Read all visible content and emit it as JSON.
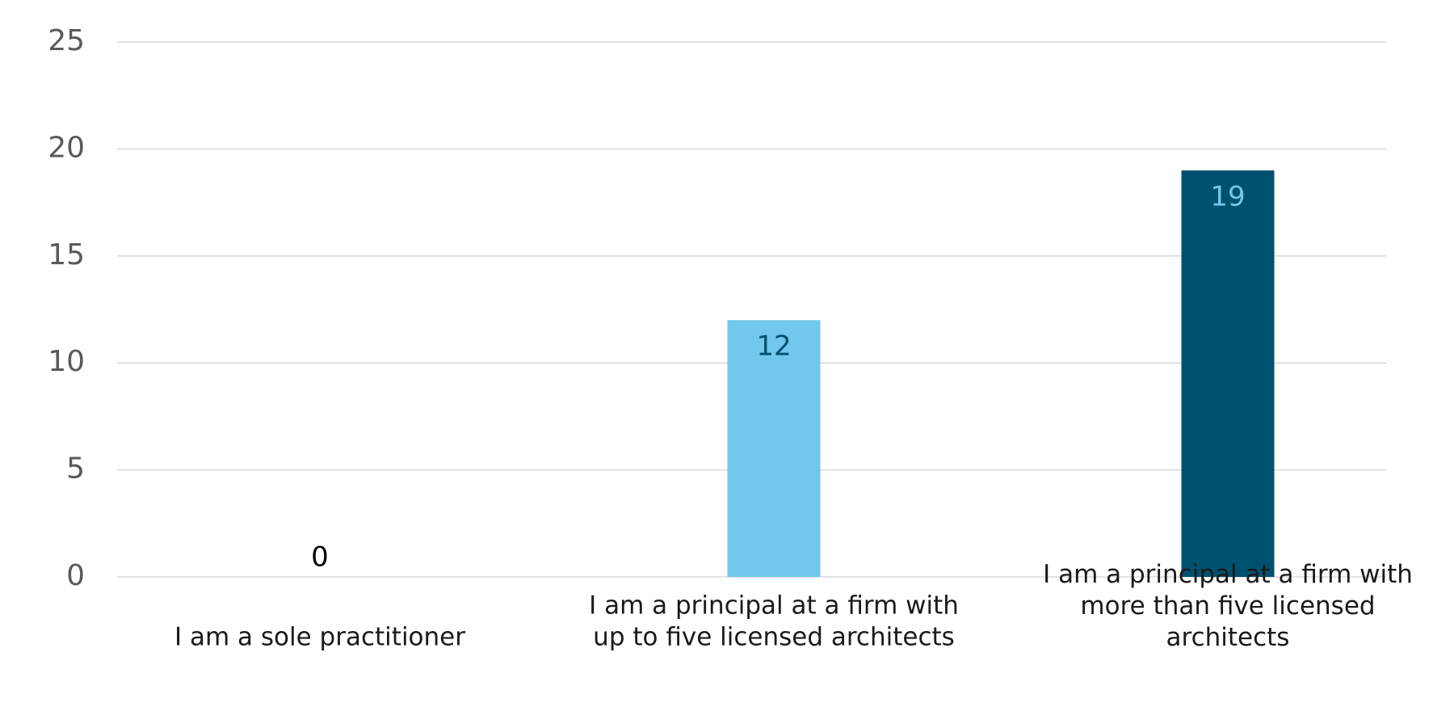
{
  "chart_data": {
    "type": "bar",
    "categories": [
      "I am a sole practitioner",
      "I am a principal at a firm with up to five licensed architects",
      "I am a principal at a firm with more than five licensed architects"
    ],
    "values": [
      0,
      12,
      19
    ],
    "colors": [
      "#72c7ec",
      "#72c7ec",
      "#00506f"
    ],
    "label_colors": [
      "#000000",
      "#00506f",
      "#72c7ec"
    ],
    "ylim": [
      0,
      25
    ],
    "yticks": [
      0,
      5,
      10,
      15,
      20,
      25
    ],
    "grid": true
  }
}
